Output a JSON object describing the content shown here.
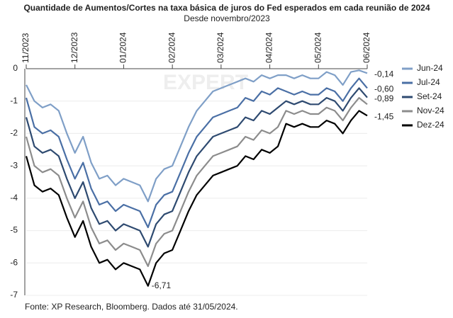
{
  "chart_data": {
    "type": "line",
    "title": "Quantidade de Aumentos/Cortes na taxa básica de juros do Fed esperados em cada reunião de 2024",
    "subtitle": "Desde novembro/2023",
    "source": "Fonte: XP Research, Bloomberg. Dados até 31/05/2024.",
    "watermark": "EXPERT",
    "categories": [
      "11/2023",
      null,
      null,
      null,
      null,
      null,
      "12/2023",
      null,
      null,
      null,
      null,
      null,
      "01/2024",
      null,
      null,
      null,
      null,
      null,
      "02/2024",
      null,
      null,
      null,
      null,
      null,
      "03/2024",
      null,
      null,
      null,
      null,
      null,
      "04/2024",
      null,
      null,
      null,
      null,
      null,
      "05/2024",
      null,
      null,
      null,
      null,
      null,
      "06/2024"
    ],
    "ylim": [
      -7,
      0
    ],
    "yticks": [
      0,
      -1,
      -2,
      -3,
      -4,
      -5,
      -6,
      -7
    ],
    "grid": true,
    "legend": "right",
    "series": [
      {
        "name": "Jun-24",
        "color": "#7f9fc7",
        "values": [
          -0.5,
          -1.0,
          -1.2,
          -1.1,
          -1.3,
          -2.0,
          -2.6,
          -2.1,
          -2.9,
          -3.4,
          -3.3,
          -3.6,
          -3.4,
          -3.5,
          -3.6,
          -4.1,
          -3.4,
          -3.1,
          -3.0,
          -2.4,
          -1.8,
          -1.3,
          -1.0,
          -0.7,
          -0.6,
          -0.5,
          -0.4,
          -0.3,
          -0.4,
          -0.2,
          -0.3,
          -0.2,
          -0.2,
          -0.3,
          -0.2,
          -0.3,
          -0.3,
          -0.1,
          -0.2,
          -0.5,
          -0.1,
          -0.05,
          -0.14
        ],
        "value_labels": [
          null,
          null,
          null,
          null,
          null,
          null,
          null,
          null,
          null,
          null,
          null,
          null,
          null,
          null,
          null,
          null,
          null,
          null,
          null,
          null,
          null,
          null,
          null,
          null,
          null,
          null,
          null,
          null,
          null,
          null,
          null,
          null,
          null,
          null,
          null,
          null,
          null,
          null,
          null,
          null,
          null,
          null,
          "-0,14"
        ]
      },
      {
        "name": "Jul-24",
        "color": "#4a6fa5",
        "values": [
          -0.9,
          -1.8,
          -2.0,
          -1.9,
          -2.1,
          -2.8,
          -3.4,
          -2.9,
          -3.7,
          -4.2,
          -4.1,
          -4.4,
          -4.2,
          -4.3,
          -4.4,
          -4.9,
          -4.2,
          -3.9,
          -3.8,
          -3.2,
          -2.6,
          -2.1,
          -1.8,
          -1.5,
          -1.4,
          -1.3,
          -1.2,
          -0.9,
          -1.0,
          -0.7,
          -0.8,
          -0.6,
          -0.7,
          -0.8,
          -0.7,
          -0.8,
          -0.8,
          -0.6,
          -0.7,
          -1.0,
          -0.6,
          -0.3,
          -0.6
        ],
        "value_labels": [
          null,
          null,
          null,
          null,
          null,
          null,
          null,
          null,
          null,
          null,
          null,
          null,
          null,
          null,
          null,
          null,
          null,
          null,
          null,
          null,
          null,
          null,
          null,
          null,
          null,
          null,
          null,
          null,
          null,
          null,
          null,
          null,
          null,
          null,
          null,
          null,
          null,
          null,
          null,
          null,
          null,
          null,
          "-0,60"
        ]
      },
      {
        "name": "Set-24",
        "color": "#2e4a70",
        "values": [
          -1.5,
          -2.4,
          -2.6,
          -2.5,
          -2.7,
          -3.4,
          -4.0,
          -3.5,
          -4.3,
          -4.8,
          -4.7,
          -5.0,
          -4.8,
          -4.9,
          -5.0,
          -5.5,
          -4.8,
          -4.5,
          -4.4,
          -3.8,
          -3.2,
          -2.7,
          -2.4,
          -2.1,
          -2.0,
          -1.9,
          -1.8,
          -1.5,
          -1.6,
          -1.3,
          -1.4,
          -1.2,
          -1.0,
          -1.1,
          -1.0,
          -1.1,
          -1.1,
          -0.9,
          -1.0,
          -1.3,
          -0.9,
          -0.6,
          -0.89
        ],
        "value_labels": [
          null,
          null,
          null,
          null,
          null,
          null,
          null,
          null,
          null,
          null,
          null,
          null,
          null,
          null,
          null,
          null,
          null,
          null,
          null,
          null,
          null,
          null,
          null,
          null,
          null,
          null,
          null,
          null,
          null,
          null,
          null,
          null,
          null,
          null,
          null,
          null,
          null,
          null,
          null,
          null,
          null,
          null,
          "-0,89"
        ]
      },
      {
        "name": "Nov-24",
        "color": "#8c8c8c",
        "values": [
          -2.1,
          -3.0,
          -3.2,
          -3.1,
          -3.3,
          -4.0,
          -4.6,
          -4.1,
          -4.9,
          -5.4,
          -5.3,
          -5.6,
          -5.4,
          -5.5,
          -5.6,
          -6.1,
          -5.4,
          -5.1,
          -5.0,
          -4.4,
          -3.8,
          -3.3,
          -3.0,
          -2.7,
          -2.6,
          -2.5,
          -2.4,
          -2.1,
          -2.2,
          -1.9,
          -2.0,
          -1.8,
          -1.3,
          -1.4,
          -1.3,
          -1.4,
          -1.4,
          -1.2,
          -1.3,
          -1.6,
          -1.2,
          -0.9,
          -1.1
        ]
      },
      {
        "name": "Dez-24",
        "color": "#000000",
        "values": [
          -2.7,
          -3.6,
          -3.8,
          -3.7,
          -3.9,
          -4.6,
          -5.2,
          -4.7,
          -5.5,
          -6.0,
          -5.9,
          -6.2,
          -6.0,
          -6.1,
          -6.2,
          -6.71,
          -6.0,
          -5.7,
          -5.6,
          -5.0,
          -4.4,
          -3.9,
          -3.6,
          -3.3,
          -3.2,
          -3.1,
          -3.0,
          -2.7,
          -2.8,
          -2.5,
          -2.6,
          -2.4,
          -1.7,
          -1.8,
          -1.7,
          -1.8,
          -1.8,
          -1.6,
          -1.7,
          -2.0,
          -1.6,
          -1.3,
          -1.45
        ],
        "value_labels": [
          null,
          null,
          null,
          null,
          null,
          null,
          null,
          null,
          null,
          null,
          null,
          null,
          null,
          null,
          null,
          "-6,71",
          null,
          null,
          null,
          null,
          null,
          null,
          null,
          null,
          null,
          null,
          null,
          null,
          null,
          null,
          null,
          null,
          null,
          null,
          null,
          null,
          null,
          null,
          null,
          null,
          null,
          null,
          "-1,45"
        ]
      }
    ]
  }
}
